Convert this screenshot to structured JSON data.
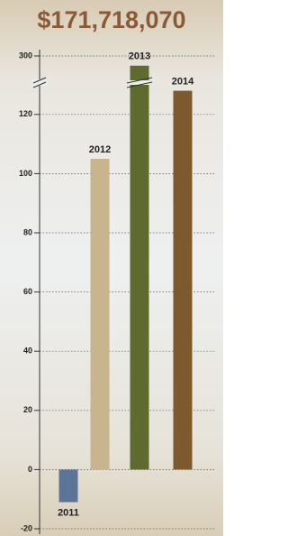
{
  "chart_data": {
    "type": "bar",
    "title": "$171,718,070",
    "categories": [
      "2011",
      "2012",
      "2013",
      "2014"
    ],
    "values": [
      -11,
      105,
      280,
      128
    ],
    "colors": [
      "#5b7597",
      "#c9b58d",
      "#5f6a2f",
      "#7d5a2e"
    ],
    "ylim": [
      -20,
      300
    ],
    "ybreak": [
      130,
      250
    ],
    "yticks": [
      -20,
      0,
      20,
      40,
      60,
      80,
      100,
      120,
      300
    ],
    "grid": true
  }
}
